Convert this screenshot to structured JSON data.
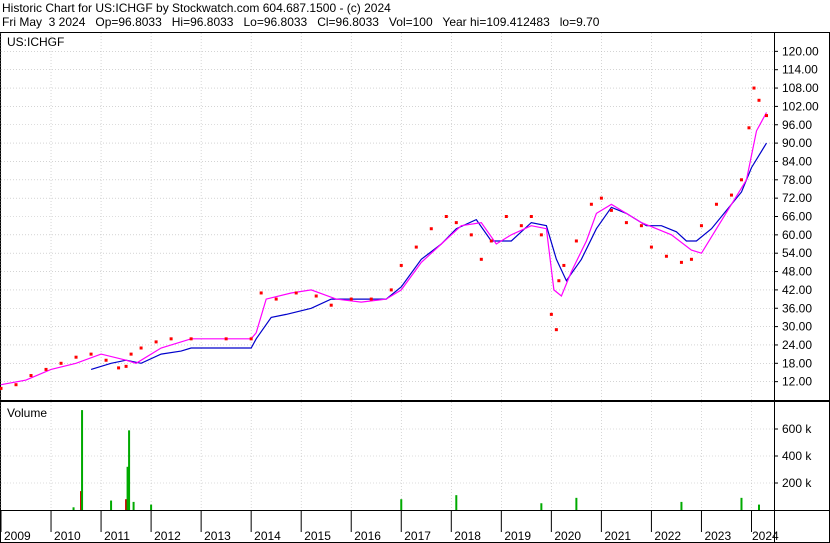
{
  "header": {
    "line1": "Historic Chart for US:ICHGF by Stockwatch.com 604.687.1500 - (c) 2024",
    "line2": "Fri May  3 2024   Op=96.8033   Hi=96.8033   Lo=96.8033   Cl=96.8033   Vol=100   Year hi=109.412483   lo=9.70"
  },
  "colors": {
    "price": "#ff0000",
    "ma_short": "#ff00ff",
    "ma_long": "#0000cc",
    "volume_up": "#00aa00",
    "volume_down": "#cc0000",
    "frame": "#000000"
  },
  "chart_data": [
    {
      "type": "line",
      "title": "US:ICHGF",
      "ylim": [
        6,
        126
      ],
      "y_ticks": [
        "120.00",
        "114.00",
        "108.00",
        "102.00",
        "96.00",
        "90.00",
        "84.00",
        "78.00",
        "72.00",
        "66.00",
        "60.00",
        "54.00",
        "48.00",
        "42.00",
        "36.00",
        "30.00",
        "24.00",
        "18.00",
        "12.00"
      ],
      "x_ticks": [
        "2009",
        "2010",
        "2011",
        "2012",
        "2013",
        "2014",
        "2015",
        "2016",
        "2017",
        "2018",
        "2019",
        "2020",
        "2021",
        "2022",
        "2023",
        "2024"
      ],
      "series": [
        {
          "key": "price",
          "x": [
            2009.0,
            2009.3,
            2009.6,
            2009.9,
            2010.2,
            2010.5,
            2010.8,
            2011.1,
            2011.35,
            2011.5,
            2011.6,
            2011.8,
            2012.1,
            2012.4,
            2012.8,
            2013.5,
            2014.0,
            2014.2,
            2014.5,
            2014.9,
            2015.3,
            2015.6,
            2016.0,
            2016.4,
            2016.8,
            2017.0,
            2017.3,
            2017.6,
            2017.9,
            2018.1,
            2018.4,
            2018.6,
            2018.8,
            2019.1,
            2019.4,
            2019.6,
            2019.8,
            2020.0,
            2020.1,
            2020.15,
            2020.25,
            2020.5,
            2020.8,
            2021.0,
            2021.2,
            2021.5,
            2021.8,
            2022.0,
            2022.3,
            2022.6,
            2022.8,
            2023.0,
            2023.3,
            2023.6,
            2023.8,
            2023.95,
            2024.05,
            2024.15,
            2024.3
          ],
          "y": [
            9.8,
            11,
            14,
            16,
            18,
            20,
            21,
            19,
            16.5,
            17,
            21,
            23,
            25,
            26,
            26,
            26,
            26,
            41,
            39,
            41,
            40,
            37,
            39,
            39,
            42,
            50,
            56,
            62,
            66,
            64,
            60,
            52,
            58,
            66,
            63,
            66,
            60,
            34,
            29,
            45,
            50,
            58,
            70,
            72,
            68,
            64,
            63,
            56,
            53,
            51,
            52,
            63,
            70,
            73,
            78,
            95,
            108,
            104,
            99
          ]
        },
        {
          "key": "ma_short",
          "x": [
            2009.0,
            2009.5,
            2010.0,
            2010.5,
            2011.0,
            2011.5,
            2011.7,
            2012.2,
            2012.8,
            2013.5,
            2014.0,
            2014.1,
            2014.3,
            2014.8,
            2015.2,
            2015.7,
            2016.2,
            2016.7,
            2017.0,
            2017.4,
            2017.8,
            2018.2,
            2018.6,
            2018.9,
            2019.2,
            2019.6,
            2019.9,
            2020.05,
            2020.2,
            2020.4,
            2020.7,
            2020.9,
            2021.2,
            2021.5,
            2021.8,
            2022.1,
            2022.4,
            2022.8,
            2023.0,
            2023.3,
            2023.6,
            2023.9,
            2024.1,
            2024.3
          ],
          "y": [
            11,
            12.5,
            16,
            18,
            21,
            19,
            18,
            23,
            26,
            26,
            26,
            28,
            39,
            41,
            42,
            39,
            38,
            39,
            42,
            51,
            57,
            63,
            64,
            57,
            60,
            63,
            62,
            42,
            40,
            48,
            58,
            67,
            70,
            67,
            64,
            62,
            60,
            55,
            54,
            62,
            70,
            78,
            94,
            100
          ]
        },
        {
          "key": "ma_long",
          "x": [
            2010.8,
            2011.2,
            2011.5,
            2011.8,
            2012.2,
            2012.6,
            2012.8,
            2013.5,
            2014.0,
            2014.1,
            2014.4,
            2014.7,
            2015.2,
            2015.6,
            2016.2,
            2016.7,
            2017.0,
            2017.4,
            2017.8,
            2018.1,
            2018.5,
            2018.8,
            2019.2,
            2019.6,
            2019.9,
            2020.1,
            2020.3,
            2020.6,
            2020.9,
            2021.2,
            2021.5,
            2021.9,
            2022.2,
            2022.5,
            2022.7,
            2022.9,
            2023.2,
            2023.5,
            2023.8,
            2024.0,
            2024.3
          ],
          "y": [
            16,
            18,
            19,
            18,
            21,
            22,
            23,
            23,
            23,
            26,
            33,
            34,
            36,
            39,
            39,
            39,
            43,
            52,
            57,
            62,
            65,
            58,
            58,
            64,
            63,
            52,
            45,
            52,
            62,
            69,
            67,
            63,
            63,
            61,
            58,
            58,
            62,
            68,
            74,
            82,
            90
          ]
        }
      ]
    },
    {
      "type": "bar",
      "title": "Volume",
      "ylim": [
        0,
        800000
      ],
      "y_ticks": [
        "600 k",
        "400 k",
        "200 k"
      ],
      "bars": [
        {
          "x": 2010.45,
          "value": 20000,
          "color": "volume_up"
        },
        {
          "x": 2010.6,
          "value": 140000,
          "color": "volume_down"
        },
        {
          "x": 2010.62,
          "value": 740000,
          "color": "volume_up"
        },
        {
          "x": 2011.2,
          "value": 70000,
          "color": "volume_up"
        },
        {
          "x": 2011.5,
          "value": 80000,
          "color": "volume_down"
        },
        {
          "x": 2011.53,
          "value": 320000,
          "color": "volume_up"
        },
        {
          "x": 2011.56,
          "value": 590000,
          "color": "volume_up"
        },
        {
          "x": 2011.65,
          "value": 60000,
          "color": "volume_up"
        },
        {
          "x": 2012.0,
          "value": 40000,
          "color": "volume_up"
        },
        {
          "x": 2017.0,
          "value": 80000,
          "color": "volume_up"
        },
        {
          "x": 2018.1,
          "value": 110000,
          "color": "volume_up"
        },
        {
          "x": 2019.8,
          "value": 50000,
          "color": "volume_up"
        },
        {
          "x": 2020.5,
          "value": 90000,
          "color": "volume_up"
        },
        {
          "x": 2022.6,
          "value": 60000,
          "color": "volume_up"
        },
        {
          "x": 2023.8,
          "value": 90000,
          "color": "volume_up"
        },
        {
          "x": 2024.15,
          "value": 40000,
          "color": "volume_up"
        }
      ]
    }
  ]
}
